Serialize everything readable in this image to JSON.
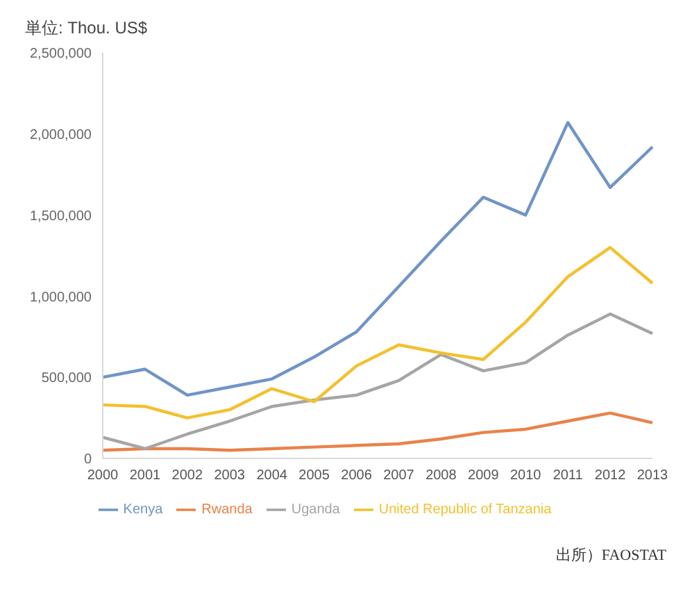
{
  "chart_data": {
    "type": "line",
    "ylabel": "単位: Thou. US$",
    "categories": [
      "2000",
      "2001",
      "2002",
      "2003",
      "2004",
      "2005",
      "2006",
      "2007",
      "2008",
      "2009",
      "2010",
      "2011",
      "2012",
      "2013"
    ],
    "series": [
      {
        "name": "Kenya",
        "color": "#6f94c8",
        "values": [
          500000,
          550000,
          390000,
          440000,
          490000,
          625000,
          780000,
          1060000,
          1340000,
          1610000,
          1500000,
          2070000,
          1670000,
          1920000
        ]
      },
      {
        "name": "Rwanda",
        "color": "#e8834a",
        "values": [
          50000,
          60000,
          60000,
          50000,
          60000,
          70000,
          80000,
          90000,
          120000,
          160000,
          180000,
          230000,
          280000,
          220000
        ]
      },
      {
        "name": "Uganda",
        "color": "#a5a5a5",
        "values": [
          130000,
          60000,
          150000,
          230000,
          320000,
          360000,
          390000,
          480000,
          640000,
          540000,
          590000,
          760000,
          890000,
          770000
        ]
      },
      {
        "name": "United Republic of Tanzania",
        "color": "#f2c12e",
        "values": [
          330000,
          320000,
          250000,
          300000,
          430000,
          350000,
          570000,
          700000,
          650000,
          610000,
          840000,
          1120000,
          1300000,
          1080000
        ]
      }
    ],
    "ylim": [
      0,
      2500000
    ],
    "yticks": [
      0,
      {
        "value": 500000,
        "label": "500,000"
      },
      {
        "value": 1000000,
        "label": "1,000,000"
      },
      {
        "value": 1500000,
        "label": "1,500,000"
      },
      {
        "value": 2000000,
        "label": "2,000,000"
      },
      {
        "value": 2500000,
        "label": "2,500,000"
      }
    ],
    "grid": false,
    "legend": "bottom",
    "marker": "none",
    "line_style": "solid",
    "annotations": [
      "出所）FAOSTAT"
    ]
  }
}
